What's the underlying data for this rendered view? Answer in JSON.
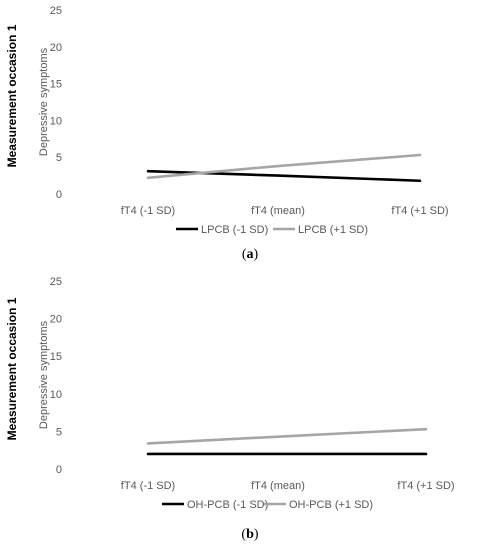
{
  "chart_data": [
    {
      "type": "line",
      "panel_label": "a",
      "outer_label": "Measurement occasion 1",
      "ylabel": "Depressive symptoms",
      "ylim": [
        0,
        25
      ],
      "yticks": [
        0,
        5,
        10,
        15,
        20,
        25
      ],
      "categories": [
        "fT4 (-1 SD)",
        "fT4 (mean)",
        "fT4 (+1 SD)"
      ],
      "grid": false,
      "legend_position": "bottom",
      "series": [
        {
          "name": "LPCB (-1 SD)",
          "values": [
            3.1,
            2.5,
            1.8
          ],
          "color": "#000000"
        },
        {
          "name": "LPCB (+1 SD)",
          "values": [
            2.2,
            3.8,
            5.3
          ],
          "color": "#a6a6a6"
        }
      ]
    },
    {
      "type": "line",
      "panel_label": "b",
      "outer_label": "Measurement occasion 1",
      "ylabel": "Depressive symptoms",
      "ylim": [
        0,
        25
      ],
      "yticks": [
        0,
        5,
        10,
        15,
        20,
        25
      ],
      "categories": [
        "fT4 (-1 SD)",
        "fT4 (mean)",
        "fT4 (+1 SD)"
      ],
      "grid": false,
      "legend_position": "bottom",
      "series": [
        {
          "name": "OH-PCB (-1 SD)",
          "values": [
            2.0,
            2.0,
            2.0
          ],
          "color": "#000000"
        },
        {
          "name": "OH-PCB (+1 SD)",
          "values": [
            3.4,
            4.3,
            5.3
          ],
          "color": "#a6a6a6"
        }
      ]
    }
  ]
}
